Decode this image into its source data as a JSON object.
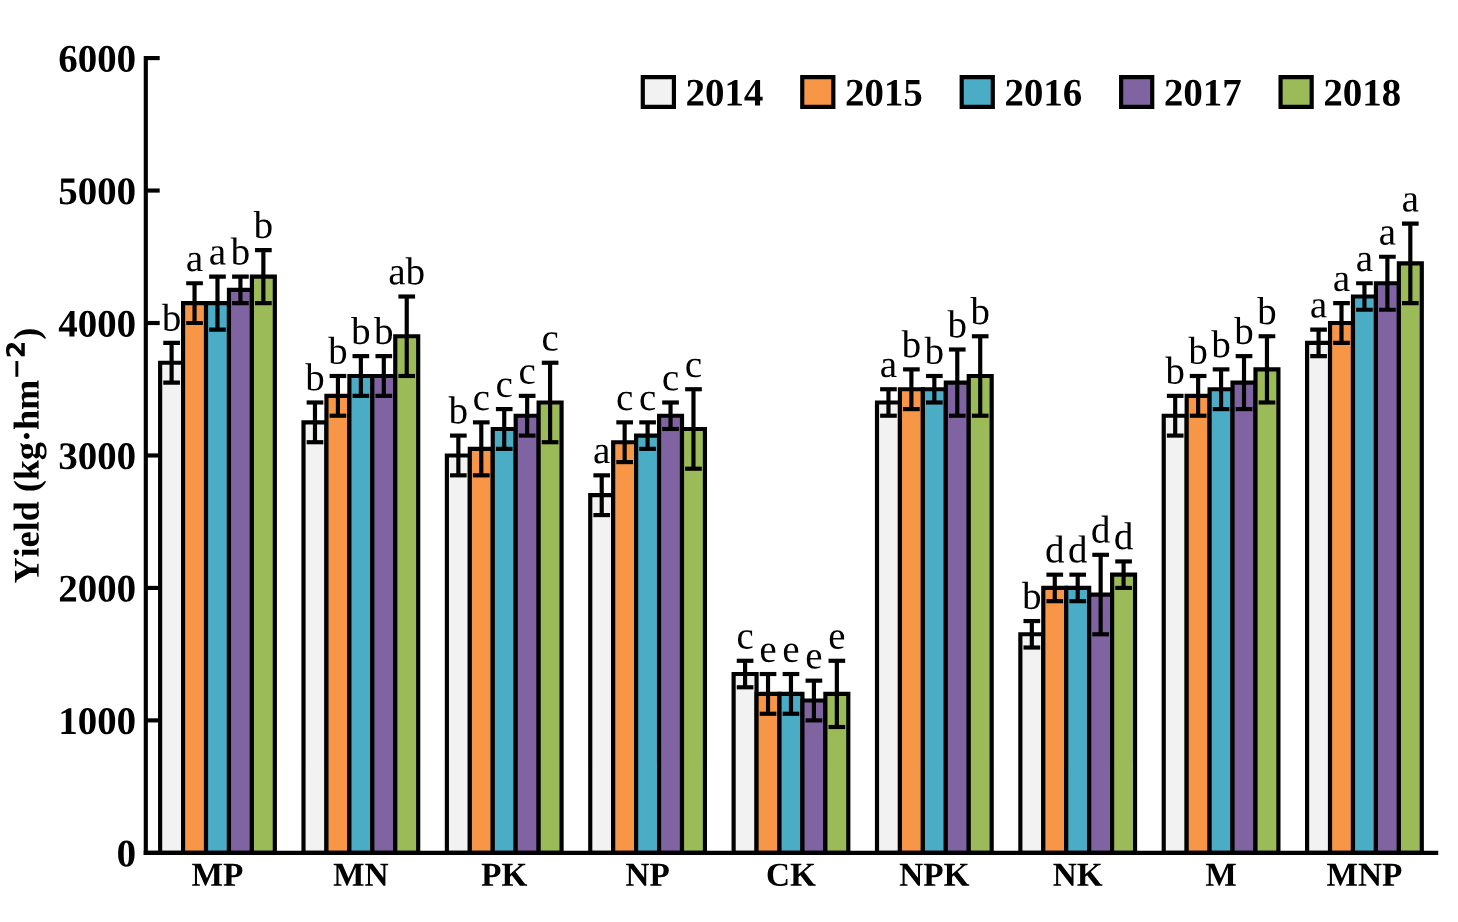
{
  "chart_data": {
    "type": "bar",
    "ylabel": "Yield (kg·hm$^{−2}$)",
    "categories": [
      "MP",
      "MN",
      "PK",
      "NP",
      "CK",
      "NPK",
      "NK",
      "M",
      "MNP"
    ],
    "ylim": [
      0,
      6000
    ],
    "yticks": [
      0,
      1000,
      2000,
      3000,
      4000,
      5000,
      6000
    ],
    "grid": false,
    "legend": "top right",
    "series": [
      {
        "name": "2014",
        "color": "#f2f2f2",
        "values": [
          3700,
          3250,
          3000,
          2700,
          1350,
          3400,
          1650,
          3300,
          3850
        ],
        "errors": [
          150,
          150,
          150,
          150,
          100,
          100,
          100,
          150,
          100
        ],
        "value_labels": [
          "b",
          "b",
          "b",
          "a",
          "c",
          "a",
          "b",
          "b",
          "a"
        ]
      },
      {
        "name": "2015",
        "color": "#f79646",
        "values": [
          4150,
          3450,
          3050,
          3100,
          1200,
          3500,
          2000,
          3450,
          4000
        ],
        "errors": [
          150,
          150,
          200,
          150,
          150,
          150,
          100,
          150,
          150
        ],
        "value_labels": [
          "a",
          "b",
          "c",
          "c",
          "e",
          "b",
          "d",
          "b",
          "a"
        ]
      },
      {
        "name": "2016",
        "color": "#4bacc6",
        "values": [
          4150,
          3600,
          3200,
          3150,
          1200,
          3500,
          2000,
          3500,
          4200
        ],
        "errors": [
          200,
          150,
          150,
          100,
          150,
          100,
          100,
          150,
          100
        ],
        "value_labels": [
          "a",
          "b",
          "c",
          "c",
          "e",
          "b",
          "d",
          "b",
          "a"
        ]
      },
      {
        "name": "2017",
        "color": "#8064a2",
        "values": [
          4250,
          3600,
          3300,
          3300,
          1150,
          3550,
          1950,
          3550,
          4300
        ],
        "errors": [
          100,
          150,
          150,
          100,
          150,
          250,
          300,
          200,
          200
        ],
        "value_labels": [
          "b",
          "b",
          "c",
          "c",
          "e",
          "b",
          "d",
          "b",
          "a"
        ]
      },
      {
        "name": "2018",
        "color": "#9bbb59",
        "values": [
          4350,
          3900,
          3400,
          3200,
          1200,
          3600,
          2100,
          3650,
          4450
        ],
        "errors": [
          200,
          300,
          300,
          300,
          250,
          300,
          100,
          250,
          300
        ],
        "value_labels": [
          "b",
          "ab",
          "c",
          "c",
          "e",
          "b",
          "d",
          "b",
          "a"
        ]
      }
    ]
  }
}
